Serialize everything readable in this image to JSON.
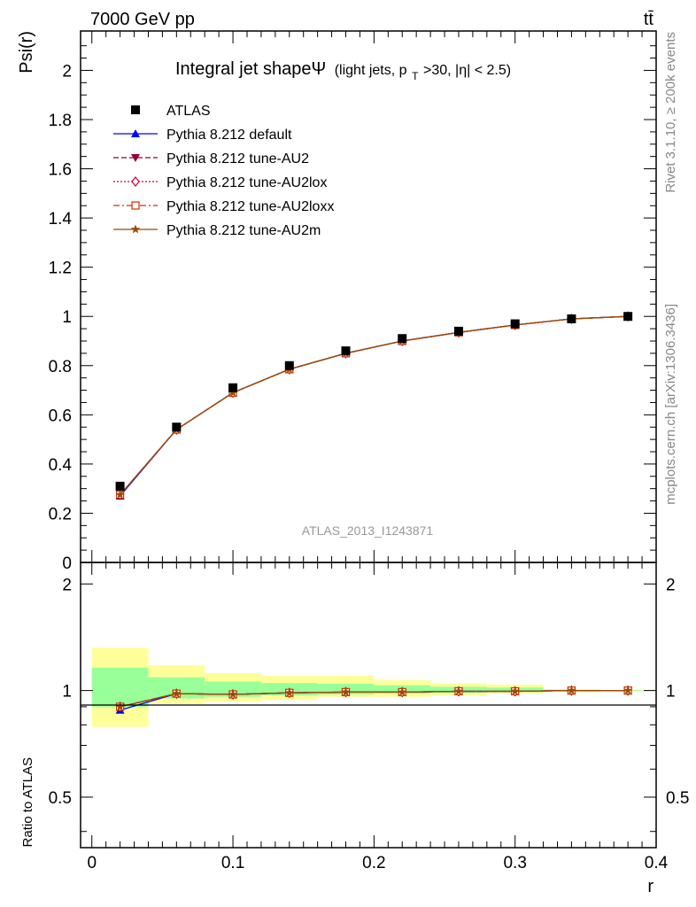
{
  "header": {
    "energy_label": "7000 GeV pp",
    "process_label": "tt̄"
  },
  "side_labels": {
    "rivet": "Rivet 3.1.10, ≥ 200k events",
    "mcplots": "mcplots.cern.ch [arXiv:1306.3436]"
  },
  "chart_data": [
    {
      "type": "line",
      "title": "Integral jet shape Ψ",
      "title_main": "Integral jet shapeΨ",
      "title_suffix": "(light jets, p",
      "title_sub": "T",
      "title_tail": ">30, |η| < 2.5)",
      "ylabel": "Psi(r)",
      "xlabel": "r",
      "xlim": [
        -0.008,
        0.4
      ],
      "ylim": [
        0,
        2.16
      ],
      "yticks": [
        0,
        0.2,
        0.4,
        0.6,
        0.8,
        1,
        1.2,
        1.4,
        1.6,
        1.8,
        2
      ],
      "ytick_labels": [
        "0",
        "0.2",
        "0.4",
        "0.6",
        "0.8",
        "1",
        "1.2",
        "1.4",
        "1.6",
        "1.8",
        "2"
      ],
      "watermark": "ATLAS_2013_I1243871",
      "x": [
        0.02,
        0.06,
        0.1,
        0.14,
        0.18,
        0.22,
        0.26,
        0.3,
        0.34,
        0.38
      ],
      "data": {
        "name": "ATLAS",
        "values": [
          0.31,
          0.55,
          0.71,
          0.8,
          0.86,
          0.91,
          0.94,
          0.97,
          0.99,
          1.0
        ]
      },
      "series": [
        {
          "name": "Pythia 8.212 default",
          "color": "#0000ff",
          "marker": "triangle-up",
          "dash": "solid",
          "values": [
            0.27,
            0.54,
            0.69,
            0.785,
            0.85,
            0.9,
            0.935,
            0.965,
            0.99,
            1.0
          ]
        },
        {
          "name": "Pythia 8.212 tune-AU2",
          "color": "#990033",
          "marker": "triangle-down",
          "dash": "dashed",
          "values": [
            0.275,
            0.54,
            0.69,
            0.785,
            0.85,
            0.9,
            0.935,
            0.965,
            0.99,
            1.0
          ]
        },
        {
          "name": "Pythia 8.212 tune-AU2lox",
          "color": "#cc0033",
          "marker": "diamond-open",
          "dash": "dotted",
          "values": [
            0.275,
            0.54,
            0.69,
            0.785,
            0.85,
            0.9,
            0.935,
            0.965,
            0.99,
            1.0
          ]
        },
        {
          "name": "Pythia 8.212 tune-AU2loxx",
          "color": "#cc3300",
          "marker": "square-open",
          "dash": "dashdot",
          "values": [
            0.275,
            0.54,
            0.69,
            0.785,
            0.85,
            0.9,
            0.935,
            0.965,
            0.99,
            1.0
          ]
        },
        {
          "name": "Pythia 8.212 tune-AU2m",
          "color": "#994c00",
          "marker": "star",
          "dash": "solid",
          "values": [
            0.275,
            0.54,
            0.69,
            0.785,
            0.85,
            0.9,
            0.935,
            0.965,
            0.99,
            1.0
          ]
        }
      ]
    },
    {
      "type": "line",
      "ylabel": "Ratio to ATLAS",
      "xlabel": "r",
      "xlim": [
        -0.008,
        0.4
      ],
      "ylim": [
        0.36,
        2.3
      ],
      "yticks": [
        0.5,
        1,
        2
      ],
      "ytick_labels": [
        "0.5",
        "1",
        "2"
      ],
      "xticks": [
        0,
        0.1,
        0.2,
        0.3,
        0.4
      ],
      "xtick_labels": [
        "0",
        "0.1",
        "0.2",
        "0.3",
        "0.4"
      ],
      "bins": [
        [
          0.0,
          0.04
        ],
        [
          0.04,
          0.08
        ],
        [
          0.08,
          0.12
        ],
        [
          0.12,
          0.16
        ],
        [
          0.16,
          0.2
        ],
        [
          0.2,
          0.24
        ],
        [
          0.24,
          0.28
        ],
        [
          0.28,
          0.32
        ],
        [
          0.32,
          0.36
        ],
        [
          0.36,
          0.4
        ]
      ],
      "band_yellow": [
        [
          0.79,
          1.32
        ],
        [
          0.92,
          1.18
        ],
        [
          0.93,
          1.12
        ],
        [
          0.94,
          1.1
        ],
        [
          0.96,
          1.1
        ],
        [
          0.96,
          1.07
        ],
        [
          0.97,
          1.05
        ],
        [
          0.98,
          1.04
        ],
        [
          0.99,
          1.01
        ],
        [
          0.995,
          1.005
        ]
      ],
      "band_green": [
        [
          0.9,
          1.16
        ],
        [
          0.95,
          1.09
        ],
        [
          0.96,
          1.06
        ],
        [
          0.97,
          1.05
        ],
        [
          0.975,
          1.045
        ],
        [
          0.98,
          1.035
        ],
        [
          0.985,
          1.025
        ],
        [
          0.99,
          1.02
        ],
        [
          0.995,
          1.005
        ],
        [
          0.998,
          1.002
        ]
      ],
      "ratio_series": [
        {
          "name": "Pythia 8.212 default",
          "values": [
            0.88,
            0.98,
            0.975,
            0.985,
            0.99,
            0.99,
            0.995,
            0.995,
            1.0,
            1.0
          ]
        },
        {
          "name": "Pythia 8.212 tune-AU2",
          "values": [
            0.9,
            0.98,
            0.975,
            0.985,
            0.99,
            0.99,
            0.995,
            0.995,
            1.0,
            1.0
          ]
        },
        {
          "name": "Pythia 8.212 tune-AU2lox",
          "values": [
            0.9,
            0.98,
            0.975,
            0.985,
            0.99,
            0.99,
            0.995,
            0.995,
            1.0,
            1.0
          ]
        },
        {
          "name": "Pythia 8.212 tune-AU2loxx",
          "values": [
            0.9,
            0.98,
            0.975,
            0.985,
            0.99,
            0.99,
            0.995,
            0.995,
            1.0,
            1.0
          ]
        },
        {
          "name": "Pythia 8.212 tune-AU2m",
          "values": [
            0.9,
            0.98,
            0.975,
            0.985,
            0.99,
            0.99,
            0.995,
            0.995,
            1.0,
            1.0
          ]
        }
      ]
    }
  ]
}
